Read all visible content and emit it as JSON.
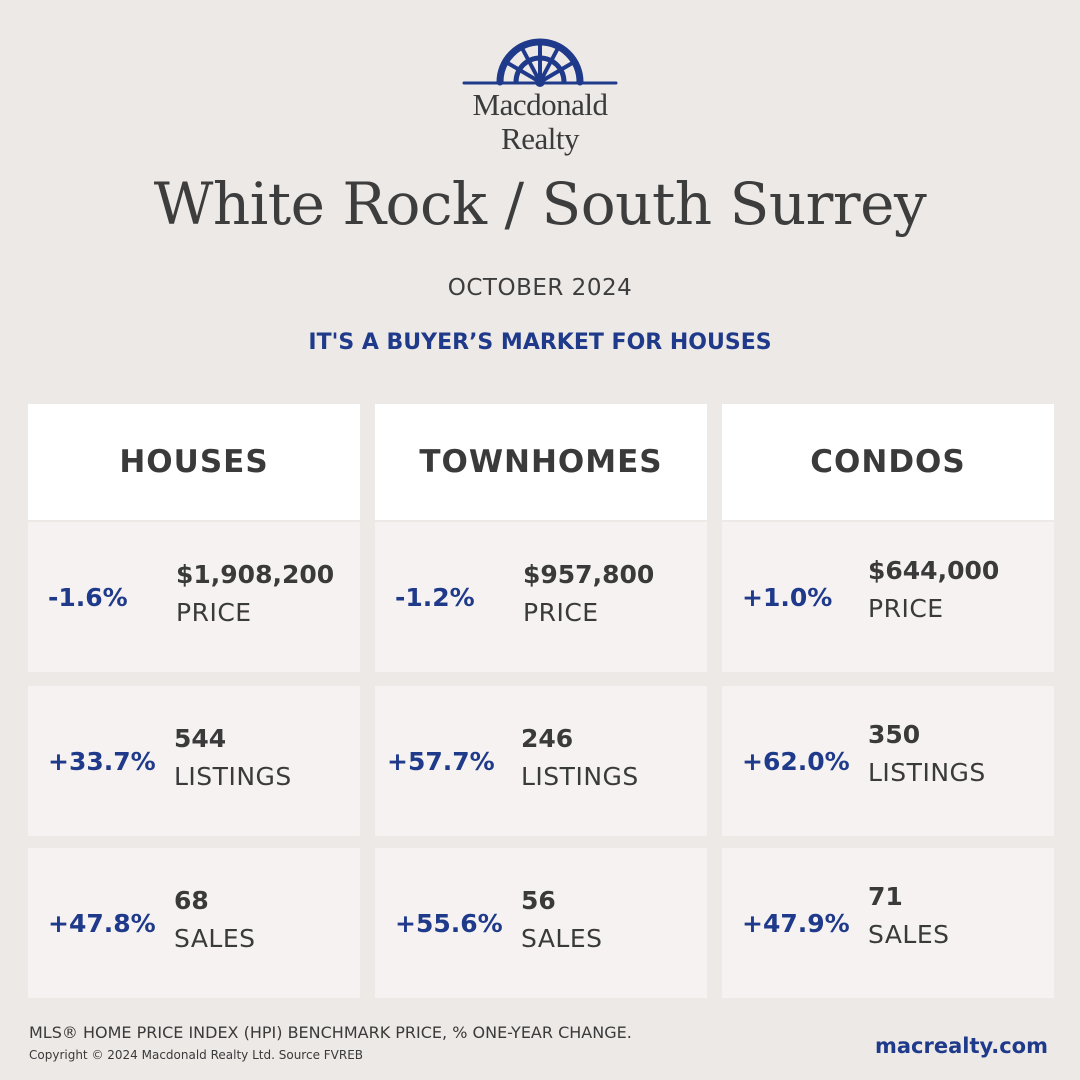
{
  "brand": {
    "name_line1": "Macdonald",
    "name_line2": "Realty",
    "logo_color": "#1f3a8a",
    "logo_icon": "sunburst-arch-logo"
  },
  "title": "White Rock / South Surrey",
  "date": "OCTOBER 2024",
  "tagline": "IT'S A BUYER’S MARKET FOR HOUSES",
  "columns": [
    {
      "header": "HOUSES",
      "price": {
        "change": "-1.6%",
        "value": "$1,908,200",
        "label": "PRICE"
      },
      "listings": {
        "change": "+33.7%",
        "value": "544",
        "label": "LISTINGS"
      },
      "sales": {
        "change": "+47.8%",
        "value": "68",
        "label": "SALES"
      }
    },
    {
      "header": "TOWNHOMES",
      "price": {
        "change": "-1.2%",
        "value": "$957,800",
        "label": "PRICE"
      },
      "listings": {
        "change": "+57.7%",
        "value": "246",
        "label": "LISTINGS"
      },
      "sales": {
        "change": "+55.6%",
        "value": "56",
        "label": "SALES"
      }
    },
    {
      "header": "CONDOS",
      "price": {
        "change": "+1.0%",
        "value": "$644,000",
        "label": "PRICE"
      },
      "listings": {
        "change": "+62.0%",
        "value": "350",
        "label": "LISTINGS"
      },
      "sales": {
        "change": "+47.9%",
        "value": "71",
        "label": "SALES"
      }
    }
  ],
  "footer": {
    "note": "MLS® HOME PRICE INDEX (HPI) BENCHMARK PRICE, % ONE-YEAR CHANGE.",
    "copyright": "Copyright © 2024 Macdonald Realty Ltd. Source FVREB",
    "website": "macrealty.com"
  },
  "colors": {
    "accent": "#1f3a8a",
    "background": "#ede9e7",
    "card": "#f5f2f1",
    "header_card": "#ffffff",
    "text": "#3a3a3a"
  }
}
